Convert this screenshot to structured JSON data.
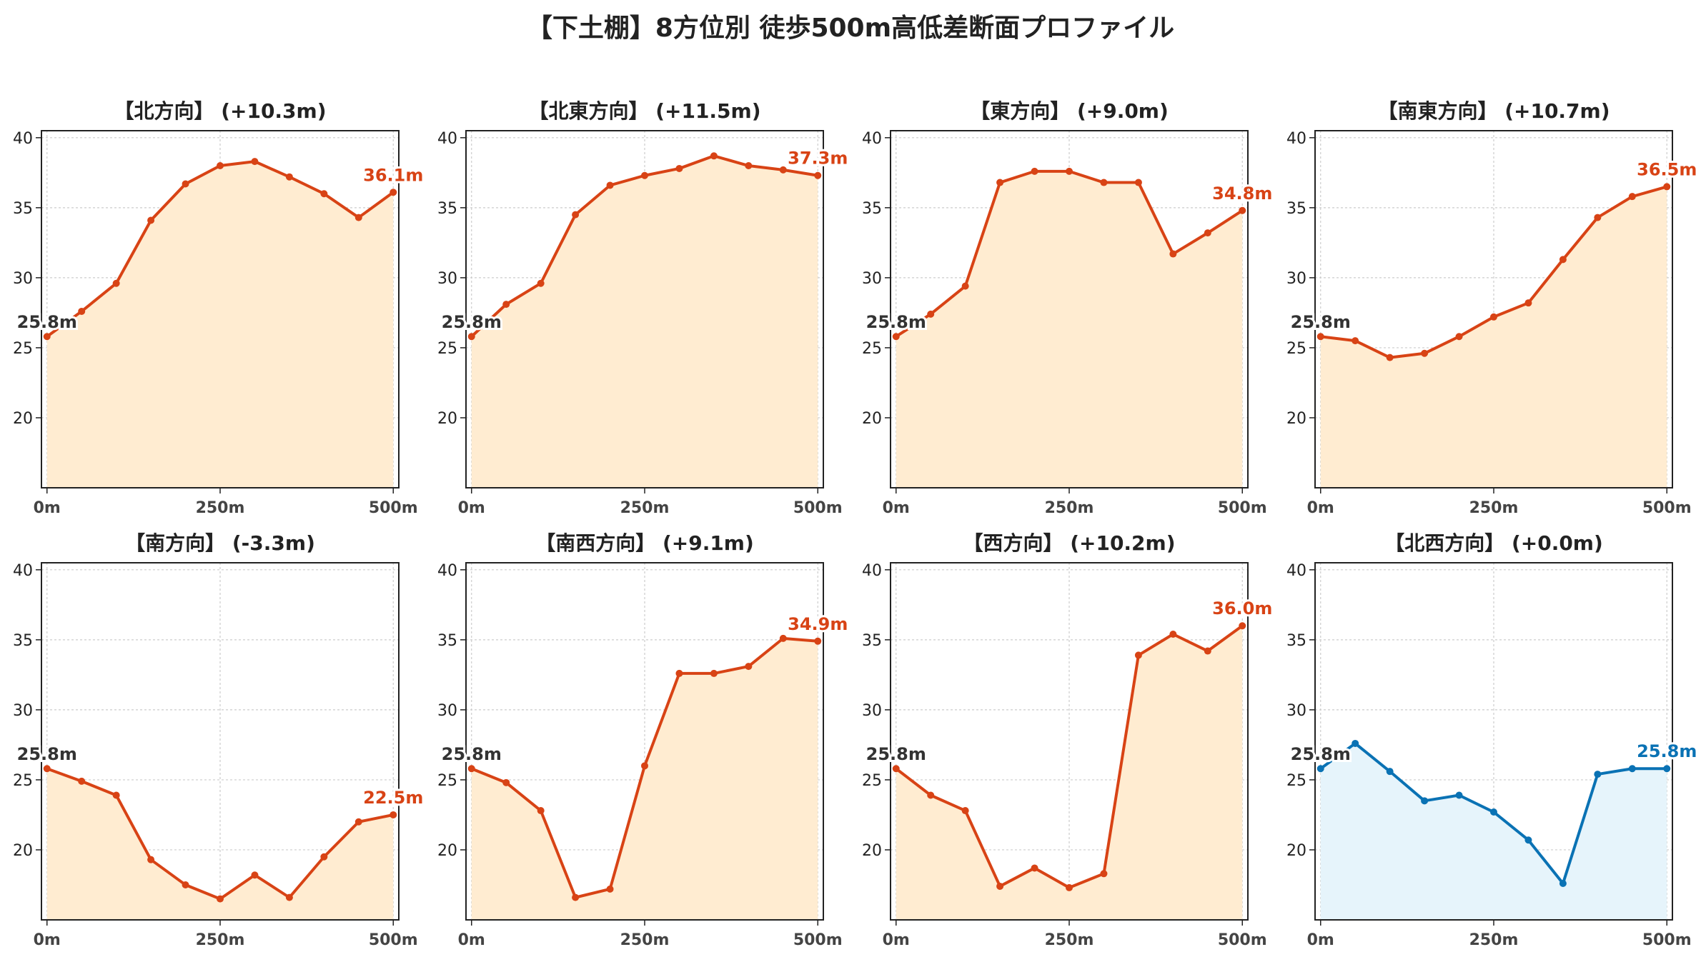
{
  "figure": {
    "title": "【下土棚】8方位別 徒歩500m高低差断面プロファイル"
  },
  "colors": {
    "gain_line": "#d84315",
    "gain_fill": "#ffecd1",
    "flat_line": "#0a72b4",
    "flat_fill": "#e6f4fb",
    "start_label": "#333333",
    "grid": "#cccccc"
  },
  "chart_data": [
    {
      "type": "area",
      "title": "【北方向】 (+10.3m)",
      "x": [
        0,
        50,
        100,
        150,
        200,
        250,
        300,
        350,
        400,
        450,
        500
      ],
      "values": [
        25.8,
        27.6,
        29.6,
        34.1,
        36.7,
        38.0,
        38.3,
        37.2,
        36.0,
        34.3,
        36.1
      ],
      "xticks": [
        "0m",
        "250m",
        "500m"
      ],
      "yticks": [
        20,
        25,
        30,
        35,
        40
      ],
      "ylim": [
        15,
        40.5
      ],
      "start_label": "25.8m",
      "end_label": "36.1m",
      "style": "gain",
      "grid": true
    },
    {
      "type": "area",
      "title": "【北東方向】 (+11.5m)",
      "x": [
        0,
        50,
        100,
        150,
        200,
        250,
        300,
        350,
        400,
        450,
        500
      ],
      "values": [
        25.8,
        28.1,
        29.6,
        34.5,
        36.6,
        37.3,
        37.8,
        38.7,
        38.0,
        37.7,
        37.3
      ],
      "xticks": [
        "0m",
        "250m",
        "500m"
      ],
      "yticks": [
        20,
        25,
        30,
        35,
        40
      ],
      "ylim": [
        15,
        40.5
      ],
      "start_label": "25.8m",
      "end_label": "37.3m",
      "style": "gain",
      "grid": true
    },
    {
      "type": "area",
      "title": "【東方向】 (+9.0m)",
      "x": [
        0,
        50,
        100,
        150,
        200,
        250,
        300,
        350,
        400,
        450,
        500
      ],
      "values": [
        25.8,
        27.4,
        29.4,
        36.8,
        37.6,
        37.6,
        36.8,
        36.8,
        31.7,
        33.2,
        34.8
      ],
      "xticks": [
        "0m",
        "250m",
        "500m"
      ],
      "yticks": [
        20,
        25,
        30,
        35,
        40
      ],
      "ylim": [
        15,
        40.5
      ],
      "start_label": "25.8m",
      "end_label": "34.8m",
      "style": "gain",
      "grid": true
    },
    {
      "type": "area",
      "title": "【南東方向】 (+10.7m)",
      "x": [
        0,
        50,
        100,
        150,
        200,
        250,
        300,
        350,
        400,
        450,
        500
      ],
      "values": [
        25.8,
        25.5,
        24.3,
        24.6,
        25.8,
        27.2,
        28.2,
        31.3,
        34.3,
        35.8,
        36.5
      ],
      "xticks": [
        "0m",
        "250m",
        "500m"
      ],
      "yticks": [
        20,
        25,
        30,
        35,
        40
      ],
      "ylim": [
        15,
        40.5
      ],
      "start_label": "25.8m",
      "end_label": "36.5m",
      "style": "gain",
      "grid": true
    },
    {
      "type": "area",
      "title": "【南方向】 (-3.3m)",
      "x": [
        0,
        50,
        100,
        150,
        200,
        250,
        300,
        350,
        400,
        450,
        500
      ],
      "values": [
        25.8,
        24.9,
        23.9,
        19.3,
        17.5,
        16.5,
        18.2,
        16.6,
        19.5,
        22.0,
        22.5
      ],
      "xticks": [
        "0m",
        "250m",
        "500m"
      ],
      "yticks": [
        20,
        25,
        30,
        35,
        40
      ],
      "ylim": [
        15,
        40.5
      ],
      "start_label": "25.8m",
      "end_label": "22.5m",
      "style": "loss",
      "grid": true
    },
    {
      "type": "area",
      "title": "【南西方向】 (+9.1m)",
      "x": [
        0,
        50,
        100,
        150,
        200,
        250,
        300,
        350,
        400,
        450,
        500
      ],
      "values": [
        25.8,
        24.8,
        22.8,
        16.6,
        17.2,
        26.0,
        32.6,
        32.6,
        33.1,
        35.1,
        34.9
      ],
      "xticks": [
        "0m",
        "250m",
        "500m"
      ],
      "yticks": [
        20,
        25,
        30,
        35,
        40
      ],
      "ylim": [
        15,
        40.5
      ],
      "start_label": "25.8m",
      "end_label": "34.9m",
      "style": "gain",
      "grid": true
    },
    {
      "type": "area",
      "title": "【西方向】 (+10.2m)",
      "x": [
        0,
        50,
        100,
        150,
        200,
        250,
        300,
        350,
        400,
        450,
        500
      ],
      "values": [
        25.8,
        23.9,
        22.8,
        17.4,
        18.7,
        17.3,
        18.3,
        33.9,
        35.4,
        34.2,
        36.0
      ],
      "xticks": [
        "0m",
        "250m",
        "500m"
      ],
      "yticks": [
        20,
        25,
        30,
        35,
        40
      ],
      "ylim": [
        15,
        40.5
      ],
      "start_label": "25.8m",
      "end_label": "36.0m",
      "style": "gain",
      "grid": true
    },
    {
      "type": "area",
      "title": "【北西方向】 (+0.0m)",
      "x": [
        0,
        50,
        100,
        150,
        200,
        250,
        300,
        350,
        400,
        450,
        500
      ],
      "values": [
        25.8,
        27.6,
        25.6,
        23.5,
        23.9,
        22.7,
        20.7,
        17.6,
        25.4,
        25.8,
        25.8
      ],
      "xticks": [
        "0m",
        "250m",
        "500m"
      ],
      "yticks": [
        20,
        25,
        30,
        35,
        40
      ],
      "ylim": [
        15,
        40.5
      ],
      "start_label": "25.8m",
      "end_label": "25.8m",
      "style": "flat",
      "grid": true
    }
  ]
}
